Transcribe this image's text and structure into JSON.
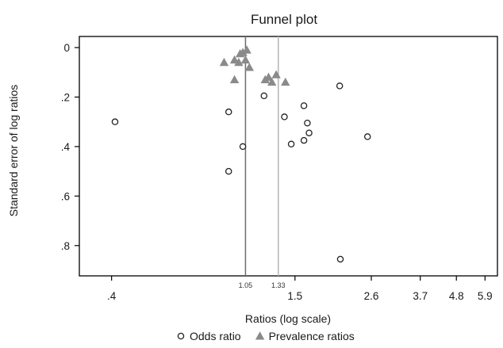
{
  "chart_data": {
    "type": "scatter",
    "title": "Funnel plot",
    "xlabel": "Ratios (log scale)",
    "ylabel": "Standard error of log ratios",
    "x_scale": "log",
    "y_inverted": true,
    "xlim": [
      0.33,
      6.2
    ],
    "ylim": [
      0,
      0.9
    ],
    "x_ticks": [
      {
        "value": 0.4,
        "label": ".4"
      },
      {
        "value": 1.5,
        "label": "1.5"
      },
      {
        "value": 2.6,
        "label": "2.6"
      },
      {
        "value": 3.7,
        "label": "3.7"
      },
      {
        "value": 4.8,
        "label": "4.8"
      },
      {
        "value": 5.9,
        "label": "5.9"
      }
    ],
    "y_ticks": [
      {
        "value": 0,
        "label": "0"
      },
      {
        "value": 0.2,
        "label": ".2"
      },
      {
        "value": 0.4,
        "label": ".4"
      },
      {
        "value": 0.6,
        "label": ".6"
      },
      {
        "value": 0.8,
        "label": ".8"
      }
    ],
    "reference_lines": [
      {
        "x": 1.05,
        "label": "1.05",
        "color": "#6e6e6e"
      },
      {
        "x": 1.33,
        "label": "1.33",
        "color": "#b4b4b4"
      }
    ],
    "grid": false,
    "legend_position": "bottom",
    "series": [
      {
        "name": "Odds ratio",
        "marker": "circle",
        "color": "#222222",
        "points": [
          {
            "x": 0.41,
            "y": 0.3
          },
          {
            "x": 0.93,
            "y": 0.26
          },
          {
            "x": 0.93,
            "y": 0.5
          },
          {
            "x": 1.03,
            "y": 0.4
          },
          {
            "x": 1.2,
            "y": 0.195
          },
          {
            "x": 1.39,
            "y": 0.28
          },
          {
            "x": 1.46,
            "y": 0.39
          },
          {
            "x": 1.6,
            "y": 0.235
          },
          {
            "x": 1.64,
            "y": 0.305
          },
          {
            "x": 1.66,
            "y": 0.345
          },
          {
            "x": 1.6,
            "y": 0.375
          },
          {
            "x": 2.07,
            "y": 0.155
          },
          {
            "x": 2.53,
            "y": 0.36
          },
          {
            "x": 2.08,
            "y": 0.855
          }
        ]
      },
      {
        "name": "Prevalence ratios",
        "marker": "triangle",
        "color": "#8a8a8a",
        "points": [
          {
            "x": 0.9,
            "y": 0.06
          },
          {
            "x": 0.97,
            "y": 0.05
          },
          {
            "x": 1.0,
            "y": 0.06
          },
          {
            "x": 1.01,
            "y": 0.025
          },
          {
            "x": 1.03,
            "y": 0.02
          },
          {
            "x": 1.06,
            "y": 0.01
          },
          {
            "x": 1.05,
            "y": 0.05
          },
          {
            "x": 1.08,
            "y": 0.08
          },
          {
            "x": 0.97,
            "y": 0.13
          },
          {
            "x": 1.21,
            "y": 0.13
          },
          {
            "x": 1.24,
            "y": 0.12
          },
          {
            "x": 1.27,
            "y": 0.14
          },
          {
            "x": 1.31,
            "y": 0.11
          },
          {
            "x": 1.4,
            "y": 0.14
          }
        ]
      }
    ]
  }
}
